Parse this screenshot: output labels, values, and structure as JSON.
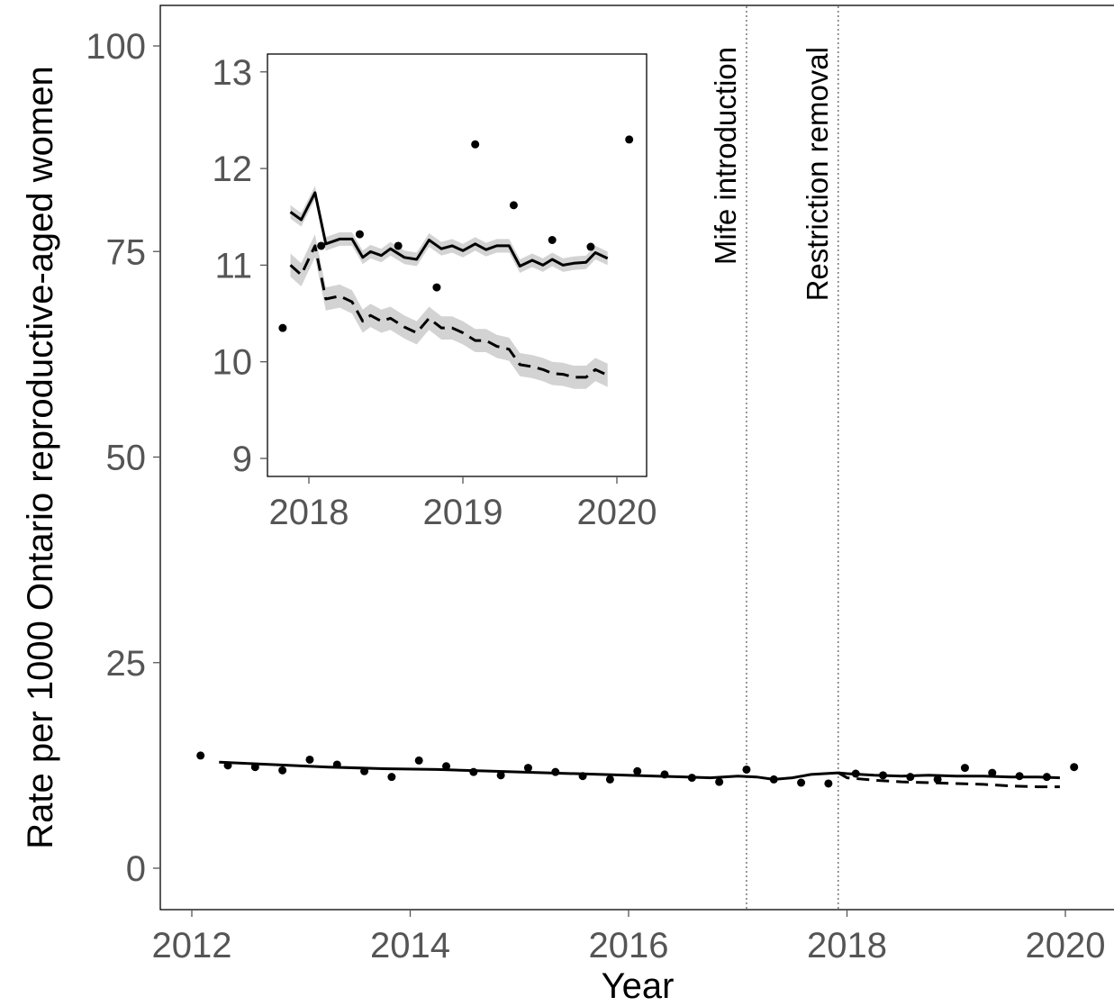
{
  "chart_data": [
    {
      "type": "line",
      "xlabel": "Year",
      "ylabel": "Rate per 1000 Ontario reproductive-aged women",
      "xlim": [
        2011.95,
        2020.45
      ],
      "ylim": [
        -5,
        105
      ],
      "x_ticks": [
        2012,
        2014,
        2016,
        2018,
        2020
      ],
      "y_ticks": [
        0,
        25,
        50,
        75,
        100
      ],
      "x_tick_labels": [
        "2012",
        "2014",
        "2016",
        "2018",
        "2020"
      ],
      "y_tick_labels": [
        "0",
        "25",
        "50",
        "75",
        "100"
      ],
      "grid": false,
      "vertical_lines": [
        {
          "x": 2017.08,
          "label": "Mife introduction",
          "style": "dotted"
        },
        {
          "x": 2017.92,
          "label": "Restriction removal",
          "style": "dotted"
        }
      ],
      "observed_points": {
        "x": [
          2012.08,
          2012.33,
          2012.58,
          2012.83,
          2013.08,
          2013.33,
          2013.58,
          2013.83,
          2014.08,
          2014.33,
          2014.58,
          2014.83,
          2015.08,
          2015.33,
          2015.58,
          2015.83,
          2016.08,
          2016.33,
          2016.58,
          2016.83,
          2017.08,
          2017.33,
          2017.58,
          2017.83,
          2018.08,
          2018.33,
          2018.58,
          2018.83,
          2019.08,
          2019.33,
          2019.58,
          2019.83,
          2020.08
        ],
        "y": [
          13.7,
          12.5,
          12.3,
          11.9,
          13.2,
          12.6,
          11.8,
          11.1,
          13.1,
          12.4,
          11.7,
          11.3,
          12.2,
          11.7,
          11.2,
          10.8,
          11.8,
          11.4,
          11.0,
          10.5,
          12.0,
          10.8,
          10.4,
          10.3,
          11.5,
          11.3,
          11.1,
          10.8,
          12.2,
          11.6,
          11.2,
          11.1,
          12.3
        ]
      },
      "series": [
        {
          "style": "solid",
          "x": [
            2012.25,
            2012.75,
            2013.25,
            2013.75,
            2014.25,
            2014.75,
            2015.25,
            2015.75,
            2016.25,
            2016.75,
            2017.0,
            2017.17,
            2017.33,
            2017.5,
            2017.67,
            2017.92,
            2018.0,
            2018.25,
            2018.5,
            2018.75,
            2019.0,
            2019.25,
            2019.5,
            2019.75,
            2019.95
          ],
          "y": [
            12.9,
            12.6,
            12.3,
            12.1,
            12.0,
            11.8,
            11.6,
            11.4,
            11.2,
            11.0,
            11.2,
            11.1,
            10.8,
            11.0,
            11.4,
            11.6,
            11.5,
            11.3,
            11.2,
            11.3,
            11.2,
            11.2,
            11.1,
            11.1,
            11.0
          ]
        },
        {
          "style": "dashed",
          "x": [
            2017.92,
            2018.0,
            2018.25,
            2018.5,
            2018.75,
            2019.0,
            2019.25,
            2019.5,
            2019.75,
            2019.95
          ],
          "y": [
            11.6,
            11.0,
            10.7,
            10.5,
            10.4,
            10.3,
            10.2,
            10.0,
            9.9,
            9.9
          ]
        }
      ]
    },
    {
      "type": "line",
      "role": "inset",
      "xlim": [
        2017.7,
        2020.2
      ],
      "ylim": [
        8.8,
        13.2
      ],
      "x_ticks": [
        2018,
        2019,
        2020
      ],
      "y_ticks": [
        9,
        10,
        11,
        12,
        13
      ],
      "x_tick_labels": [
        "2018",
        "2019",
        "2020"
      ],
      "y_tick_labels": [
        "9",
        "10",
        "11",
        "12",
        "13"
      ],
      "observed_points": {
        "x": [
          2017.83,
          2018.08,
          2018.33,
          2018.58,
          2018.83,
          2019.08,
          2019.33,
          2019.58,
          2019.83,
          2020.08
        ],
        "y": [
          10.35,
          11.2,
          11.32,
          11.2,
          10.77,
          12.25,
          11.62,
          11.26,
          11.19,
          12.3
        ]
      },
      "series": [
        {
          "style": "solid",
          "band": true,
          "x": [
            2017.88,
            2017.95,
            2018.04,
            2018.11,
            2018.2,
            2018.28,
            2018.35,
            2018.4,
            2018.47,
            2018.53,
            2018.62,
            2018.7,
            2018.78,
            2018.86,
            2018.93,
            2019.0,
            2019.08,
            2019.15,
            2019.22,
            2019.3,
            2019.37,
            2019.45,
            2019.52,
            2019.58,
            2019.65,
            2019.72,
            2019.8,
            2019.86,
            2019.94
          ],
          "y": [
            11.55,
            11.47,
            11.75,
            11.22,
            11.27,
            11.27,
            11.08,
            11.14,
            11.1,
            11.17,
            11.08,
            11.06,
            11.26,
            11.17,
            11.2,
            11.15,
            11.22,
            11.16,
            11.2,
            11.2,
            10.99,
            11.05,
            11.0,
            11.06,
            11.0,
            11.02,
            11.03,
            11.13,
            11.07
          ]
        },
        {
          "style": "dashed",
          "band": true,
          "x": [
            2017.88,
            2017.95,
            2018.04,
            2018.11,
            2018.2,
            2018.28,
            2018.35,
            2018.4,
            2018.47,
            2018.53,
            2018.62,
            2018.7,
            2018.78,
            2018.86,
            2018.93,
            2019.0,
            2019.08,
            2019.15,
            2019.22,
            2019.3,
            2019.37,
            2019.45,
            2019.52,
            2019.58,
            2019.65,
            2019.72,
            2019.8,
            2019.86,
            2019.94
          ],
          "y": [
            11.0,
            10.9,
            11.2,
            10.65,
            10.68,
            10.62,
            10.42,
            10.48,
            10.42,
            10.45,
            10.36,
            10.3,
            10.45,
            10.35,
            10.35,
            10.3,
            10.22,
            10.22,
            10.16,
            10.13,
            9.97,
            9.95,
            9.92,
            9.88,
            9.87,
            9.84,
            9.84,
            9.92,
            9.86
          ]
        }
      ]
    }
  ]
}
